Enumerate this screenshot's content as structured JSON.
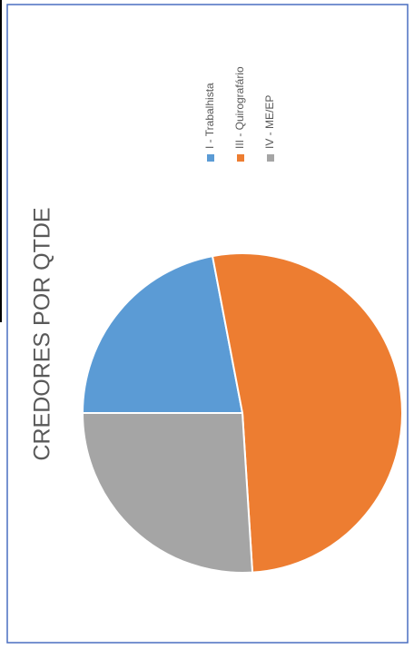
{
  "chart_data": {
    "type": "pie",
    "title": "CREDORES POR QTDE",
    "categories": [
      "I - Trabalhista",
      "III - Quirografário",
      "IV - ME/EP"
    ],
    "values": [
      22,
      52,
      26
    ],
    "colors": [
      "#5b9bd5",
      "#ed7d31",
      "#a5a5a5"
    ],
    "legend": "top"
  }
}
